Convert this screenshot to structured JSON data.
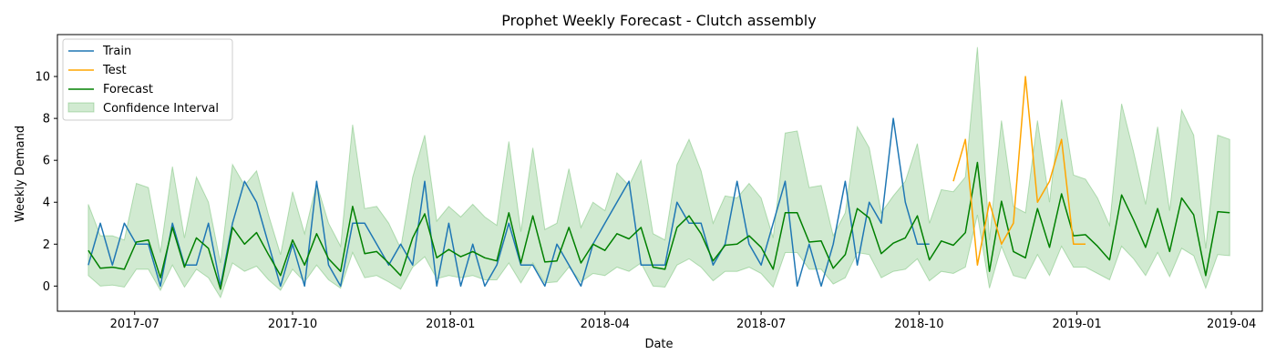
{
  "chart_data": {
    "type": "line",
    "title": "Prophet Weekly Forecast - Clutch assembly",
    "xlabel": "Date",
    "ylabel": "Weekly Demand",
    "xlim": [
      "2017-05-17",
      "2019-04-19"
    ],
    "ylim": [
      -1.2,
      12.0
    ],
    "x_ticks": [
      {
        "date": "2017-07-01",
        "label": "2017-07"
      },
      {
        "date": "2017-10-01",
        "label": "2017-10"
      },
      {
        "date": "2018-01-01",
        "label": "2018-01"
      },
      {
        "date": "2018-04-01",
        "label": "2018-04"
      },
      {
        "date": "2018-07-01",
        "label": "2018-07"
      },
      {
        "date": "2018-10-01",
        "label": "2018-10"
      },
      {
        "date": "2019-01-01",
        "label": "2019-01"
      },
      {
        "date": "2019-04-01",
        "label": "2019-04"
      }
    ],
    "y_ticks": [
      0,
      2,
      4,
      6,
      8,
      10
    ],
    "grid": false,
    "legend_position": "top-left",
    "series": [
      {
        "name": "Train",
        "color": "#1f77b4",
        "start": "2017-06-04",
        "values": [
          1,
          3,
          1,
          3,
          2,
          2,
          0,
          3,
          1,
          1,
          3,
          0,
          3,
          5,
          4,
          2,
          0,
          2,
          0,
          5,
          1,
          0,
          3,
          3,
          2,
          1,
          2,
          1,
          5,
          0,
          3,
          0,
          2,
          0,
          1,
          3,
          1,
          1,
          0,
          2,
          1,
          0,
          2,
          3,
          4,
          5,
          1,
          1,
          1,
          4,
          3,
          3,
          1,
          2,
          5,
          2,
          1,
          3,
          5,
          0,
          2,
          0,
          2,
          5,
          1,
          4,
          3,
          8,
          4,
          2,
          2
        ]
      },
      {
        "name": "Test",
        "color": "#ffa500",
        "start": "2018-10-21",
        "values": [
          5,
          7,
          1,
          4,
          2,
          3,
          10,
          4,
          5,
          7,
          2,
          2
        ]
      },
      {
        "name": "Forecast",
        "color": "#008000",
        "start": "2017-06-04",
        "values": [
          1.7,
          0.85,
          0.9,
          0.8,
          2.1,
          2.2,
          0.4,
          2.8,
          0.9,
          2.3,
          1.8,
          -0.15,
          2.8,
          2.0,
          2.55,
          1.5,
          0.5,
          2.2,
          1.0,
          2.5,
          1.3,
          0.7,
          3.8,
          1.55,
          1.65,
          1.1,
          0.5,
          2.3,
          3.45,
          1.35,
          1.75,
          1.4,
          1.65,
          1.35,
          1.2,
          3.5,
          1.1,
          3.35,
          1.15,
          1.2,
          2.8,
          1.1,
          2.0,
          1.7,
          2.5,
          2.25,
          2.8,
          0.9,
          0.8,
          2.8,
          3.35,
          2.5,
          1.2,
          1.95,
          2.0,
          2.4,
          1.85,
          0.8,
          3.5,
          3.5,
          2.1,
          2.15,
          0.85,
          1.5,
          3.7,
          3.25,
          1.55,
          2.05,
          2.3,
          3.35,
          1.25,
          2.15,
          1.95,
          2.55,
          5.9,
          0.7,
          4.05,
          1.65,
          1.35,
          3.7,
          1.85,
          4.4,
          2.4,
          2.45,
          1.9,
          1.25,
          4.35,
          3.15,
          1.85,
          3.7,
          1.65,
          4.2,
          3.4,
          0.5,
          3.55,
          3.5
        ]
      }
    ],
    "confidence_interval": {
      "name": "Confidence Interval",
      "color": "#2ca02c",
      "start": "2017-06-04",
      "upper": [
        3.9,
        2.4,
        2.4,
        2.2,
        4.9,
        4.7,
        1.6,
        5.7,
        2.3,
        5.2,
        4.0,
        1.1,
        5.8,
        4.8,
        5.5,
        3.4,
        1.5,
        4.5,
        2.5,
        4.9,
        3.0,
        1.9,
        7.7,
        3.7,
        3.8,
        3.0,
        1.8,
        5.2,
        7.2,
        3.1,
        3.8,
        3.3,
        3.9,
        3.3,
        2.9,
        6.9,
        2.6,
        6.6,
        2.7,
        3.0,
        5.6,
        2.8,
        4.0,
        3.6,
        5.4,
        4.8,
        6.0,
        2.5,
        2.2,
        5.8,
        7.0,
        5.5,
        3.0,
        4.3,
        4.2,
        4.9,
        4.2,
        2.3,
        7.3,
        7.4,
        4.7,
        4.8,
        2.4,
        3.5,
        7.6,
        6.6,
        3.5,
        4.3,
        5.0,
        6.8,
        3.0,
        4.6,
        4.5,
        5.2,
        11.4,
        2.2,
        7.9,
        3.8,
        3.5,
        7.9,
        4.0,
        8.9,
        5.3,
        5.1,
        4.2,
        2.9,
        8.7,
        6.4,
        3.9,
        7.6,
        3.6,
        8.4,
        7.2,
        1.8,
        7.2,
        7.0
      ],
      "lower": [
        0.5,
        0.0,
        0.05,
        -0.05,
        0.8,
        0.8,
        -0.2,
        1.0,
        -0.05,
        0.8,
        0.4,
        -0.55,
        1.1,
        0.7,
        0.95,
        0.3,
        -0.2,
        0.8,
        0.2,
        1.0,
        0.3,
        -0.1,
        1.6,
        0.4,
        0.5,
        0.2,
        -0.15,
        0.9,
        1.4,
        0.35,
        0.5,
        0.4,
        0.5,
        0.3,
        0.3,
        1.1,
        0.15,
        1.1,
        0.15,
        0.2,
        0.9,
        0.2,
        0.6,
        0.5,
        0.9,
        0.7,
        1.1,
        0.0,
        -0.05,
        1.0,
        1.3,
        0.9,
        0.25,
        0.7,
        0.7,
        0.9,
        0.6,
        -0.05,
        1.6,
        1.6,
        0.8,
        0.8,
        0.1,
        0.4,
        1.6,
        1.5,
        0.4,
        0.7,
        0.8,
        1.3,
        0.25,
        0.7,
        0.6,
        0.9,
        3.4,
        -0.1,
        1.9,
        0.5,
        0.35,
        1.5,
        0.5,
        1.9,
        0.9,
        0.9,
        0.6,
        0.3,
        1.9,
        1.3,
        0.5,
        1.6,
        0.45,
        1.8,
        1.45,
        -0.1,
        1.5,
        1.45
      ]
    }
  }
}
